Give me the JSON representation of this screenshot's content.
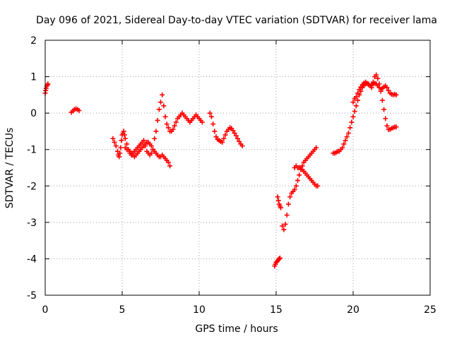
{
  "chart_data": {
    "type": "scatter",
    "title": "Day 096 of 2021, Sidereal Day-to-day VTEC variation (SDTVAR) for receiver lama",
    "xlabel": "GPS time / hours",
    "ylabel": "SDTVAR / TECUs",
    "xlim": [
      0,
      25
    ],
    "ylim": [
      -5,
      2
    ],
    "xticks": [
      "0",
      "5",
      "10",
      "15",
      "20",
      "25"
    ],
    "yticks": [
      "2",
      "1",
      "0",
      "-1",
      "-2",
      "-3",
      "-4",
      "-5"
    ],
    "grid": true,
    "marker": "plus",
    "marker_color": "#ff0000",
    "series": [
      {
        "x": [
          0.0,
          0.03,
          0.06,
          0.1,
          0.15,
          0.18
        ],
        "y": [
          0.55,
          0.62,
          0.68,
          0.74,
          0.78,
          0.8
        ]
      },
      {
        "x": [
          1.7,
          1.8,
          1.9,
          2.0,
          2.1,
          2.2
        ],
        "y": [
          0.02,
          0.06,
          0.1,
          0.12,
          0.1,
          0.07
        ]
      },
      {
        "x": [
          4.4,
          4.5,
          4.6,
          4.7,
          4.75,
          4.8,
          4.85,
          4.9,
          4.95,
          5.0,
          5.05,
          5.1,
          5.15,
          5.2,
          5.3,
          5.4,
          5.5,
          5.6,
          5.7,
          5.8,
          5.9,
          6.0,
          6.1,
          6.2,
          6.3,
          6.4,
          6.5,
          6.6,
          6.7,
          6.8,
          6.9,
          7.0,
          7.1,
          7.2,
          7.3,
          7.4,
          7.5,
          7.6,
          7.7,
          7.8,
          7.9,
          8.0,
          8.1,
          8.2,
          8.3,
          8.4,
          8.5,
          8.6,
          8.7,
          8.8,
          8.9,
          9.0,
          9.1,
          9.2,
          9.3,
          9.4,
          9.5,
          9.6,
          9.7,
          9.8,
          9.9,
          10.0,
          10.1,
          10.2
        ],
        "y": [
          -0.7,
          -0.8,
          -0.9,
          -1.05,
          -1.15,
          -1.2,
          -1.1,
          -0.95,
          -0.75,
          -0.6,
          -0.55,
          -0.5,
          -0.6,
          -0.7,
          -0.85,
          -1.0,
          -1.1,
          -1.15,
          -1.1,
          -1.05,
          -1.0,
          -0.95,
          -0.9,
          -0.85,
          -0.8,
          -0.75,
          -0.9,
          -1.05,
          -1.1,
          -1.15,
          -1.1,
          -1.0,
          -0.7,
          -0.5,
          -0.2,
          0.1,
          0.3,
          0.5,
          0.2,
          -0.1,
          -0.3,
          -0.4,
          -0.5,
          -0.5,
          -0.45,
          -0.35,
          -0.25,
          -0.15,
          -0.1,
          -0.05,
          0.0,
          -0.05,
          -0.1,
          -0.15,
          -0.2,
          -0.25,
          -0.2,
          -0.15,
          -0.1,
          -0.05,
          -0.1,
          -0.15,
          -0.2,
          -0.25
        ]
      },
      {
        "x": [
          5.2,
          5.3,
          5.4,
          5.5,
          5.6,
          5.7,
          5.8,
          5.9,
          6.0,
          6.1,
          6.2,
          6.3,
          6.4,
          6.5,
          6.6,
          6.7,
          6.8,
          6.9,
          7.0,
          7.1,
          7.2,
          7.3,
          7.4,
          7.5,
          7.6,
          7.7,
          7.8,
          7.9,
          8.0,
          8.1
        ],
        "y": [
          -0.95,
          -1.0,
          -1.0,
          -1.05,
          -1.1,
          -1.15,
          -1.2,
          -1.15,
          -1.1,
          -1.05,
          -1.0,
          -0.95,
          -0.9,
          -0.85,
          -0.8,
          -0.8,
          -0.85,
          -0.9,
          -1.0,
          -1.05,
          -1.1,
          -1.15,
          -1.2,
          -1.2,
          -1.15,
          -1.2,
          -1.25,
          -1.3,
          -1.35,
          -1.45
        ]
      },
      {
        "x": [
          10.7,
          10.8,
          10.9,
          11.0,
          11.1,
          11.2,
          11.3,
          11.4,
          11.5,
          11.6,
          11.7,
          11.8,
          11.9,
          12.0,
          12.1,
          12.2,
          12.3,
          12.4,
          12.5,
          12.6,
          12.7,
          12.8
        ],
        "y": [
          0.0,
          -0.1,
          -0.3,
          -0.5,
          -0.65,
          -0.72,
          -0.75,
          -0.78,
          -0.8,
          -0.7,
          -0.6,
          -0.5,
          -0.45,
          -0.4,
          -0.42,
          -0.48,
          -0.55,
          -0.62,
          -0.7,
          -0.78,
          -0.85,
          -0.9
        ]
      },
      {
        "x": [
          14.9,
          14.95,
          15.0,
          15.05,
          15.1,
          15.15,
          15.2,
          15.25
        ],
        "y": [
          -4.2,
          -4.15,
          -4.1,
          -4.08,
          -4.05,
          -4.02,
          -4.0,
          -3.98
        ]
      },
      {
        "x": [
          15.1,
          15.15,
          15.2,
          15.25,
          15.3,
          15.4,
          15.5,
          15.6,
          15.7,
          15.8,
          15.9,
          16.0,
          16.1,
          16.2,
          16.3,
          16.4,
          16.5,
          16.6,
          16.7,
          16.8,
          16.9,
          17.0,
          17.1,
          17.2,
          17.3,
          17.4,
          17.5,
          17.6
        ],
        "y": [
          -2.3,
          -2.4,
          -2.5,
          -2.55,
          -2.6,
          -3.1,
          -3.2,
          -3.05,
          -2.8,
          -2.5,
          -2.3,
          -2.2,
          -2.15,
          -2.1,
          -2.0,
          -1.85,
          -1.7,
          -1.55,
          -1.45,
          -1.35,
          -1.3,
          -1.25,
          -1.2,
          -1.15,
          -1.1,
          -1.05,
          -1.0,
          -0.95
        ]
      },
      {
        "x": [
          16.2,
          16.3,
          16.4,
          16.5,
          16.6,
          16.7,
          16.8,
          16.9,
          17.0,
          17.1,
          17.2,
          17.3,
          17.4,
          17.5,
          17.6,
          17.7
        ],
        "y": [
          -1.5,
          -1.45,
          -1.5,
          -1.5,
          -1.5,
          -1.55,
          -1.6,
          -1.65,
          -1.7,
          -1.75,
          -1.8,
          -1.85,
          -1.9,
          -1.95,
          -2.0,
          -2.0
        ]
      },
      {
        "x": [
          18.7,
          18.8,
          18.9,
          19.0,
          19.1,
          19.2,
          19.3,
          19.4,
          19.5,
          19.6,
          19.7,
          19.8,
          19.9,
          20.0,
          20.1,
          20.2,
          20.3,
          20.4,
          20.5,
          20.6,
          20.7,
          20.8,
          20.9,
          21.0,
          21.1,
          21.2,
          21.3,
          21.4,
          21.5,
          21.6,
          21.7,
          21.8,
          21.9,
          22.0,
          22.1,
          22.2,
          22.3,
          22.4,
          22.5,
          22.6,
          22.7,
          22.8
        ],
        "y": [
          -1.1,
          -1.1,
          -1.08,
          -1.05,
          -1.05,
          -1.0,
          -0.95,
          -0.85,
          -0.75,
          -0.65,
          -0.55,
          -0.4,
          -0.25,
          -0.1,
          0.05,
          0.2,
          0.35,
          0.5,
          0.6,
          0.7,
          0.75,
          0.8,
          0.82,
          0.8,
          0.75,
          0.7,
          0.85,
          1.0,
          1.05,
          0.95,
          0.8,
          0.6,
          0.35,
          0.1,
          -0.15,
          -0.35,
          -0.45,
          -0.45,
          -0.42,
          -0.4,
          -0.38,
          -0.38
        ]
      },
      {
        "x": [
          20.0,
          20.1,
          20.2,
          20.3,
          20.4,
          20.5,
          20.6,
          20.7,
          20.8,
          20.9,
          21.0,
          21.1,
          21.2,
          21.3,
          21.4,
          21.5,
          21.6,
          21.7,
          21.8,
          21.9,
          22.0,
          22.1,
          22.2,
          22.3,
          22.4,
          22.5,
          22.6,
          22.7,
          22.8
        ],
        "y": [
          0.3,
          0.4,
          0.45,
          0.55,
          0.65,
          0.72,
          0.78,
          0.82,
          0.85,
          0.82,
          0.78,
          0.75,
          0.78,
          0.8,
          0.82,
          0.8,
          0.75,
          0.7,
          0.65,
          0.68,
          0.72,
          0.75,
          0.7,
          0.62,
          0.55,
          0.52,
          0.5,
          0.52,
          0.5
        ]
      }
    ]
  }
}
